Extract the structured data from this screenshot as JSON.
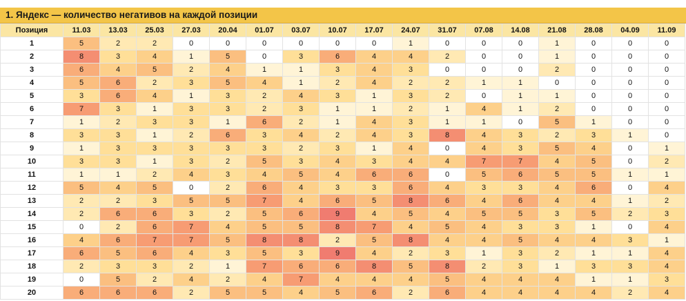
{
  "title": "1. Яндекс — количество негативов на каждой позиции",
  "header_label": "Позиция",
  "dates": [
    "11.03",
    "13.03",
    "25.03",
    "27.03",
    "20.04",
    "01.07",
    "03.07",
    "10.07",
    "17.07",
    "24.07",
    "31.07",
    "07.08",
    "14.08",
    "21.08",
    "28.08",
    "04.09",
    "11.09"
  ],
  "rows": [
    {
      "pos": "1",
      "values": [
        5,
        2,
        2,
        0,
        0,
        0,
        0,
        0,
        0,
        1,
        0,
        0,
        0,
        1,
        0,
        0,
        0
      ]
    },
    {
      "pos": "2",
      "values": [
        8,
        3,
        4,
        1,
        5,
        0,
        3,
        6,
        4,
        4,
        2,
        0,
        0,
        1,
        0,
        0,
        0
      ]
    },
    {
      "pos": "3",
      "values": [
        6,
        4,
        5,
        2,
        4,
        1,
        1,
        3,
        4,
        3,
        0,
        0,
        0,
        2,
        0,
        0,
        0
      ]
    },
    {
      "pos": "4",
      "values": [
        5,
        6,
        2,
        3,
        5,
        4,
        1,
        2,
        4,
        2,
        2,
        1,
        1,
        0,
        0,
        0,
        0
      ]
    },
    {
      "pos": "5",
      "values": [
        3,
        6,
        4,
        1,
        3,
        2,
        4,
        3,
        1,
        3,
        2,
        0,
        1,
        1,
        0,
        0,
        0
      ]
    },
    {
      "pos": "6",
      "values": [
        7,
        3,
        1,
        3,
        3,
        2,
        3,
        1,
        1,
        2,
        1,
        4,
        1,
        2,
        0,
        0,
        0
      ]
    },
    {
      "pos": "7",
      "values": [
        1,
        2,
        3,
        3,
        1,
        6,
        2,
        1,
        4,
        3,
        1,
        1,
        0,
        5,
        1,
        0,
        0
      ]
    },
    {
      "pos": "8",
      "values": [
        3,
        3,
        1,
        2,
        6,
        3,
        4,
        2,
        4,
        3,
        8,
        4,
        3,
        2,
        3,
        1,
        0
      ]
    },
    {
      "pos": "9",
      "values": [
        1,
        3,
        3,
        3,
        3,
        3,
        2,
        3,
        1,
        4,
        0,
        4,
        3,
        5,
        4,
        0,
        1
      ]
    },
    {
      "pos": "10",
      "values": [
        3,
        3,
        1,
        3,
        2,
        5,
        3,
        4,
        3,
        4,
        4,
        7,
        7,
        4,
        5,
        0,
        2
      ]
    },
    {
      "pos": "11",
      "values": [
        1,
        1,
        2,
        4,
        3,
        4,
        5,
        4,
        6,
        6,
        0,
        5,
        6,
        5,
        5,
        1,
        1
      ]
    },
    {
      "pos": "12",
      "values": [
        5,
        4,
        5,
        0,
        2,
        6,
        4,
        3,
        3,
        6,
        4,
        3,
        3,
        4,
        6,
        0,
        4
      ]
    },
    {
      "pos": "13",
      "values": [
        2,
        2,
        3,
        5,
        5,
        7,
        4,
        6,
        5,
        8,
        6,
        4,
        6,
        4,
        4,
        1,
        2
      ]
    },
    {
      "pos": "14",
      "values": [
        2,
        6,
        6,
        3,
        2,
        5,
        6,
        9,
        4,
        5,
        4,
        5,
        5,
        3,
        5,
        2,
        3
      ]
    },
    {
      "pos": "15",
      "values": [
        0,
        2,
        6,
        7,
        4,
        5,
        5,
        8,
        7,
        4,
        5,
        4,
        3,
        3,
        1,
        0,
        4
      ]
    },
    {
      "pos": "16",
      "values": [
        4,
        6,
        7,
        7,
        5,
        8,
        8,
        2,
        5,
        8,
        4,
        4,
        5,
        4,
        4,
        3,
        1
      ]
    },
    {
      "pos": "17",
      "values": [
        6,
        5,
        6,
        4,
        3,
        5,
        3,
        9,
        4,
        2,
        3,
        1,
        3,
        2,
        1,
        1,
        4
      ]
    },
    {
      "pos": "18",
      "values": [
        2,
        3,
        3,
        2,
        1,
        7,
        6,
        6,
        8,
        5,
        8,
        2,
        3,
        1,
        3,
        3,
        4
      ]
    },
    {
      "pos": "19",
      "values": [
        0,
        5,
        2,
        4,
        2,
        4,
        7,
        4,
        4,
        4,
        5,
        4,
        4,
        4,
        1,
        1,
        3
      ]
    },
    {
      "pos": "20",
      "values": [
        6,
        6,
        6,
        2,
        5,
        5,
        4,
        5,
        6,
        2,
        6,
        4,
        4,
        4,
        4,
        2,
        4
      ]
    }
  ],
  "colors": {
    "title_bg": "#f3c548",
    "header_bg": "#fbe6a3",
    "scale": [
      "#ffffff",
      "#fff4d6",
      "#ffe9b3",
      "#ffdf98",
      "#fdd08a",
      "#fbbf80",
      "#f9ad79",
      "#f79c73",
      "#f48e72",
      "#f07c70"
    ]
  }
}
